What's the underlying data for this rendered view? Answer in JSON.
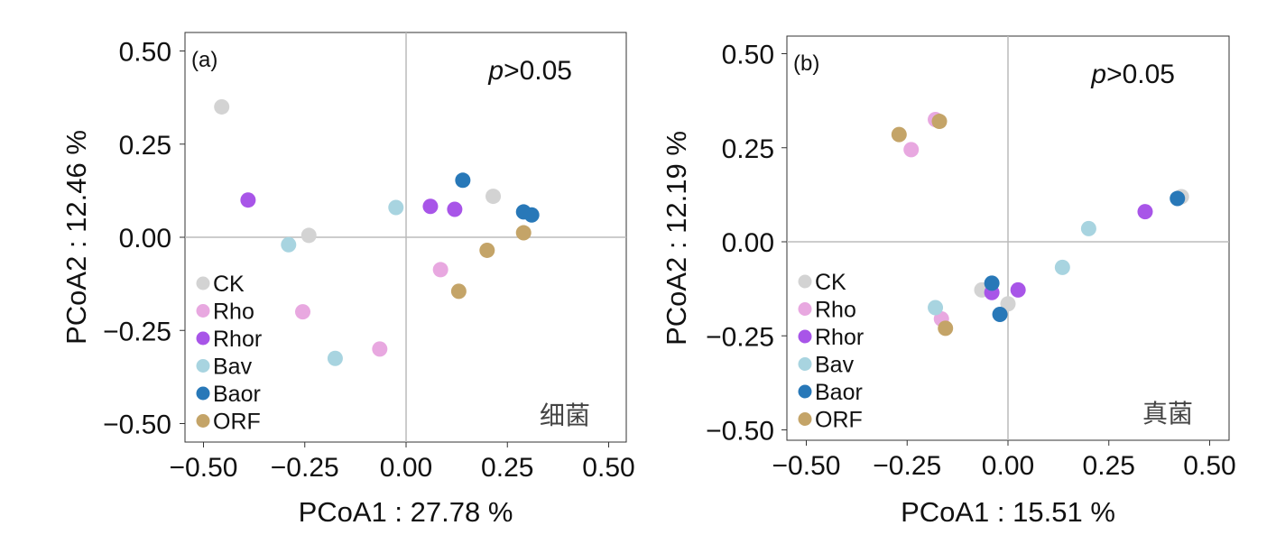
{
  "chart_data": [
    {
      "type": "scatter",
      "panel_label": "(a)",
      "annotation_p": "p",
      "annotation_rest": ">0.05",
      "corner_label": "细菌",
      "xlabel": "PCoA1 : 27.78 %",
      "ylabel": "PCoA2 : 12.46 %",
      "xlim": [
        -0.55,
        0.55
      ],
      "ylim": [
        -0.55,
        0.55
      ],
      "xticks": [
        "−0.50",
        "−0.25",
        "0.00",
        "0.25",
        "0.50"
      ],
      "xtick_values": [
        -0.5,
        -0.25,
        0,
        0.25,
        0.5
      ],
      "yticks": [
        "0.50",
        "0.25",
        "0.00",
        "−0.25",
        "−0.50"
      ],
      "ytick_values": [
        0.5,
        0.25,
        0,
        -0.25,
        -0.5
      ],
      "legend_position": "bottom-left",
      "series": [
        {
          "name": "CK",
          "color": "#d3d3d3",
          "points": [
            [
              -0.455,
              0.35
            ],
            [
              -0.24,
              0.005
            ],
            [
              0.215,
              0.11
            ]
          ]
        },
        {
          "name": "Rho",
          "color": "#e8a8e0",
          "points": [
            [
              -0.255,
              -0.2
            ],
            [
              -0.065,
              -0.3
            ],
            [
              0.085,
              -0.087
            ]
          ]
        },
        {
          "name": "Rhor",
          "color": "#a855e8",
          "points": [
            [
              -0.39,
              0.1
            ],
            [
              0.06,
              0.083
            ],
            [
              0.12,
              0.075
            ]
          ]
        },
        {
          "name": "Bav",
          "color": "#a8d4e0",
          "points": [
            [
              -0.29,
              -0.02
            ],
            [
              -0.175,
              -0.325
            ],
            [
              -0.025,
              0.08
            ]
          ]
        },
        {
          "name": "Baor",
          "color": "#2878b8",
          "points": [
            [
              0.14,
              0.153
            ],
            [
              0.29,
              0.068
            ],
            [
              0.31,
              0.06
            ]
          ]
        },
        {
          "name": "ORF",
          "color": "#c4a468",
          "points": [
            [
              0.2,
              -0.035
            ],
            [
              0.13,
              -0.145
            ],
            [
              0.29,
              0.012
            ]
          ]
        }
      ]
    },
    {
      "type": "scatter",
      "panel_label": "(b)",
      "annotation_p": "p",
      "annotation_rest": ">0.05",
      "corner_label": "真菌",
      "xlabel": "PCoA1 : 15.51 %",
      "ylabel": "PCoA2 : 12.19 %",
      "xlim": [
        -0.55,
        0.55
      ],
      "ylim": [
        -0.55,
        0.55
      ],
      "xticks": [
        "−0.50",
        "−0.25",
        "0.00",
        "0.25",
        "0.50"
      ],
      "xtick_values": [
        -0.5,
        -0.25,
        0,
        0.25,
        0.5
      ],
      "yticks": [
        "0.50",
        "0.25",
        "0.00",
        "−0.25",
        "−0.50"
      ],
      "ytick_values": [
        0.5,
        0.25,
        0,
        -0.25,
        -0.5
      ],
      "legend_position": "bottom-left",
      "series": [
        {
          "name": "CK",
          "color": "#d3d3d3",
          "points": [
            [
              0.43,
              0.12
            ],
            [
              -0.065,
              -0.128
            ],
            [
              0.0,
              -0.165
            ]
          ]
        },
        {
          "name": "Rho",
          "color": "#e8a8e0",
          "points": [
            [
              -0.24,
              0.245
            ],
            [
              -0.18,
              0.325
            ],
            [
              -0.165,
              -0.205
            ]
          ]
        },
        {
          "name": "Rhor",
          "color": "#a855e8",
          "points": [
            [
              0.34,
              0.08
            ],
            [
              -0.04,
              -0.135
            ],
            [
              0.025,
              -0.128
            ]
          ]
        },
        {
          "name": "Bav",
          "color": "#a8d4e0",
          "points": [
            [
              0.2,
              0.035
            ],
            [
              0.135,
              -0.068
            ],
            [
              -0.18,
              -0.175
            ]
          ]
        },
        {
          "name": "Baor",
          "color": "#2878b8",
          "points": [
            [
              0.42,
              0.115
            ],
            [
              -0.04,
              -0.11
            ],
            [
              -0.02,
              -0.193
            ]
          ]
        },
        {
          "name": "ORF",
          "color": "#c4a468",
          "points": [
            [
              -0.27,
              0.285
            ],
            [
              -0.17,
              0.32
            ],
            [
              -0.155,
              -0.23
            ]
          ]
        }
      ]
    }
  ]
}
